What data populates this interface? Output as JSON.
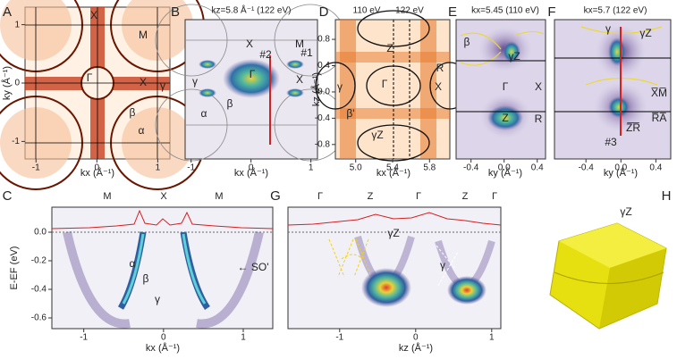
{
  "panels": [
    {
      "label": "A",
      "xlabel": "kx (Å⁻¹)",
      "ylabel": "ky (Å⁻¹)",
      "xlim": [
        -1.18,
        1.2
      ],
      "ylim": [
        -1.3,
        1.3
      ],
      "xticks": [
        -1,
        0,
        1
      ],
      "yticks": [
        -1,
        0,
        1
      ],
      "annotations": [
        "X",
        "M",
        "Γ",
        "X",
        "γ",
        "β",
        "α"
      ]
    },
    {
      "label": "B",
      "title": "kz=5.8 Å⁻¹ (122 eV)",
      "xlabel": "kx (Å⁻¹)",
      "xlim": [
        -1.1,
        1.11
      ],
      "xticks": [
        -1,
        0,
        1
      ],
      "annotations": [
        "X",
        "M",
        "Γ",
        "X",
        "γ",
        "β",
        "α",
        "#2",
        "#1"
      ]
    },
    {
      "label": "D",
      "title": "110 eV",
      "title2": "122 eV",
      "xlabel": "kx (Å⁻¹)",
      "ylabel": "kz (Å⁻¹)",
      "xlim": [
        4.78,
        6.02
      ],
      "ylim": [
        -1.02,
        1.1
      ],
      "xticks": [
        {
          "value": 5,
          "label": "5.0"
        },
        5.4,
        5.8
      ],
      "yticks": [
        0.8,
        0.4,
        {
          "value": 0,
          "label": "0.0"
        },
        -0.4,
        -0.8
      ],
      "annotations": [
        "Z",
        "R",
        "Γ",
        "X",
        "γ",
        "β'",
        "γZ"
      ]
    },
    {
      "label": "E",
      "title": "kx=5.45 (110 eV)",
      "xlabel": "ky (Å⁻¹)",
      "xlim": [
        -0.58,
        0.5
      ],
      "xticks": [
        -0.4,
        {
          "value": 0,
          "label": "0.0"
        },
        0.4
      ],
      "annotations": [
        "β",
        "γZ",
        "Γ",
        "X",
        "Z",
        "R"
      ]
    },
    {
      "label": "F",
      "title": "kx=5.7 (122 eV)",
      "xlabel": "ky (Å⁻¹)",
      "xlim": [
        -0.76,
        0.57
      ],
      "xticks": [
        -0.4,
        {
          "value": 0,
          "label": "0.0"
        },
        0.4
      ],
      "annotations": [
        "γ",
        "γZ",
        "X̅M̅",
        "R̅A̅",
        "Z̅R̅",
        "#3"
      ]
    },
    {
      "label": "C",
      "xlabel": "kx (Å⁻¹)",
      "ylabel": "E-EF (eV)",
      "xlim": [
        -1.4,
        1.37
      ],
      "ylim": [
        -0.675,
        0.175
      ],
      "xticks": [
        -1,
        0,
        1
      ],
      "yticks": [
        {
          "value": 0,
          "label": "0.0"
        },
        -0.2,
        -0.4,
        -0.6
      ],
      "top_labels": [
        "M",
        "X",
        "M"
      ],
      "annotations": [
        "α",
        "β",
        "γ",
        "← SO'"
      ]
    },
    {
      "label": "G",
      "xlabel": "kz (Å⁻¹)",
      "xlim": [
        -1.68,
        1.12
      ],
      "xticks": [
        -1,
        0,
        1
      ],
      "top_labels": [
        "Γ",
        "Z",
        "Γ",
        "Z",
        "Γ"
      ],
      "annotations": [
        "γZ",
        "γ"
      ]
    },
    {
      "label": "H",
      "annotations": [
        "γZ"
      ]
    }
  ]
}
